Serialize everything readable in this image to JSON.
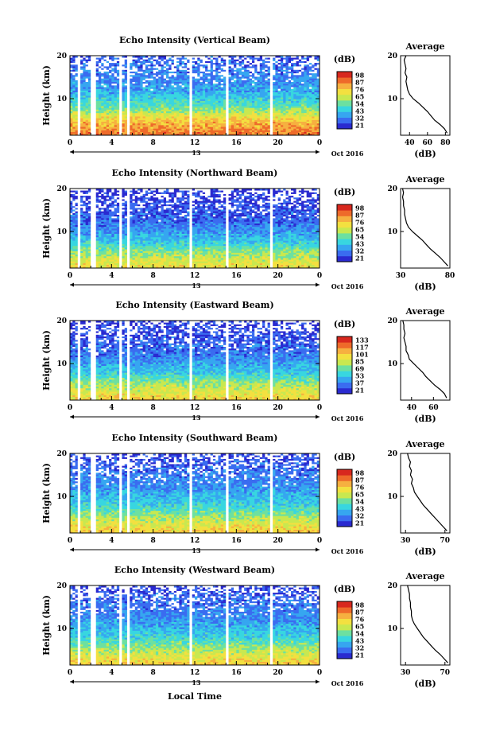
{
  "figure": {
    "xlabel": "Local Time",
    "date_label": "Oct 2016",
    "day_label": "13",
    "colorbar_label": "(dB)",
    "average_title": "Average",
    "average_xlabel": "(dB)",
    "ylabel": "Height (km)",
    "colormap": [
      "#2a2ad0",
      "#3a6cf0",
      "#36a6f0",
      "#38d6e0",
      "#6de0a0",
      "#c8e850",
      "#f3e040",
      "#f6b040",
      "#ee6a2a",
      "#d8281e"
    ],
    "gap_color": "#ffffff"
  },
  "chart_data": [
    {
      "type": "heatmap",
      "title": "Echo Intensity (Vertical Beam)",
      "xlabel": "Local Time",
      "ylabel": "Height (km)",
      "x_ticks": [
        "0",
        "4",
        "8",
        "12",
        "16",
        "20",
        "0"
      ],
      "y_ticks": [
        "10",
        "20"
      ],
      "xlim": [
        0,
        24
      ],
      "ylim": [
        1.5,
        20
      ],
      "colorbar_ticks": [
        "21",
        "32",
        "43",
        "54",
        "65",
        "76",
        "87",
        "98"
      ],
      "data_gaps_hours": [
        [
          0.8,
          1.1
        ],
        [
          2.1,
          2.4
        ],
        [
          4.8,
          5.1
        ],
        [
          5.5,
          5.75
        ],
        [
          11.4,
          11.7
        ],
        [
          11.95,
          12.1
        ],
        [
          15.1,
          15.35
        ],
        [
          18.4,
          18.6
        ],
        [
          19.2,
          19.5
        ]
      ],
      "intensity_profile": [
        {
          "height_km": 2,
          "value_db": 85
        },
        {
          "height_km": 5,
          "value_db": 75
        },
        {
          "height_km": 8,
          "value_db": 55
        },
        {
          "height_km": 12,
          "value_db": 40
        },
        {
          "height_km": 20,
          "value_db": 30
        }
      ],
      "average": {
        "title": "Average",
        "xlabel": "(dB)",
        "x_ticks": [
          "40",
          "60",
          "80"
        ],
        "xlim": [
          30,
          85
        ],
        "y_ticks": [
          "10",
          "20"
        ],
        "height_km": [
          2,
          3,
          4,
          5,
          6,
          7,
          8,
          9,
          10,
          11,
          12,
          13,
          14,
          15,
          16,
          17,
          18,
          19,
          20
        ],
        "value_db": [
          82,
          79,
          74,
          68,
          64,
          60,
          55,
          50,
          44,
          40,
          38,
          37,
          36,
          37,
          35,
          36,
          35,
          34,
          36
        ]
      }
    },
    {
      "type": "heatmap",
      "title": "Echo Intensity (Northward Beam)",
      "xlabel": "Local Time",
      "ylabel": "Height (km)",
      "x_ticks": [
        "0",
        "4",
        "8",
        "12",
        "16",
        "20",
        "0"
      ],
      "y_ticks": [
        "10",
        "20"
      ],
      "xlim": [
        0,
        24
      ],
      "ylim": [
        1.5,
        20
      ],
      "colorbar_ticks": [
        "21",
        "32",
        "43",
        "54",
        "65",
        "76",
        "87",
        "98"
      ],
      "data_gaps_hours": [
        [
          0.8,
          1.1
        ],
        [
          2.1,
          2.4
        ],
        [
          4.8,
          5.1
        ],
        [
          5.5,
          5.75
        ],
        [
          11.4,
          11.7
        ],
        [
          11.95,
          12.1
        ],
        [
          15.1,
          15.35
        ],
        [
          18.4,
          18.6
        ],
        [
          19.2,
          19.5
        ]
      ],
      "intensity_profile": [
        {
          "height_km": 2,
          "value_db": 70
        },
        {
          "height_km": 5,
          "value_db": 60
        },
        {
          "height_km": 8,
          "value_db": 45
        },
        {
          "height_km": 12,
          "value_db": 33
        },
        {
          "height_km": 20,
          "value_db": 25
        }
      ],
      "average": {
        "title": "Average",
        "xlabel": "(dB)",
        "x_ticks": [
          "30",
          "80"
        ],
        "xlim": [
          30,
          80
        ],
        "y_ticks": [
          "10",
          "20"
        ],
        "height_km": [
          2,
          3,
          4,
          5,
          6,
          7,
          8,
          9,
          10,
          11,
          12,
          13,
          14,
          15,
          16,
          17,
          18,
          19,
          20
        ],
        "value_db": [
          78,
          74,
          70,
          65,
          60,
          56,
          52,
          47,
          42,
          38,
          36,
          35,
          34,
          34,
          33,
          33,
          32,
          33,
          32
        ]
      }
    },
    {
      "type": "heatmap",
      "title": "Echo Intensity (Eastward Beam)",
      "xlabel": "Local Time",
      "ylabel": "Height (km)",
      "x_ticks": [
        "0",
        "4",
        "8",
        "12",
        "16",
        "20",
        "0"
      ],
      "y_ticks": [
        "10",
        "20"
      ],
      "xlim": [
        0,
        24
      ],
      "ylim": [
        1.5,
        20
      ],
      "colorbar_ticks": [
        "21",
        "37",
        "53",
        "69",
        "85",
        "101",
        "117",
        "133"
      ],
      "data_gaps_hours": [
        [
          0.8,
          1.1
        ],
        [
          2.1,
          2.4
        ],
        [
          4.8,
          5.1
        ],
        [
          5.5,
          5.75
        ],
        [
          11.4,
          11.7
        ],
        [
          11.95,
          12.1
        ],
        [
          15.1,
          15.35
        ],
        [
          18.4,
          18.6
        ],
        [
          19.2,
          19.5
        ]
      ],
      "intensity_profile": [
        {
          "height_km": 2,
          "value_db": 72
        },
        {
          "height_km": 5,
          "value_db": 62
        },
        {
          "height_km": 8,
          "value_db": 46
        },
        {
          "height_km": 12,
          "value_db": 34
        },
        {
          "height_km": 20,
          "value_db": 26
        }
      ],
      "average": {
        "title": "Average",
        "xlabel": "(dB)",
        "x_ticks": [
          "40",
          "60"
        ],
        "xlim": [
          30,
          75
        ],
        "y_ticks": [
          "10",
          "20"
        ],
        "height_km": [
          2,
          3,
          4,
          5,
          6,
          7,
          8,
          9,
          10,
          11,
          12,
          13,
          14,
          15,
          16,
          17,
          18,
          19,
          20
        ],
        "value_db": [
          72,
          70,
          66,
          61,
          57,
          53,
          50,
          46,
          42,
          38,
          37,
          35,
          35,
          34,
          33,
          34,
          33,
          33,
          32
        ]
      }
    },
    {
      "type": "heatmap",
      "title": "Echo Intensity (Southward Beam)",
      "xlabel": "Local Time",
      "ylabel": "Height (km)",
      "x_ticks": [
        "0",
        "4",
        "8",
        "12",
        "16",
        "20",
        "0"
      ],
      "y_ticks": [
        "10",
        "20"
      ],
      "xlim": [
        0,
        24
      ],
      "ylim": [
        1.5,
        20
      ],
      "colorbar_ticks": [
        "21",
        "32",
        "43",
        "54",
        "65",
        "76",
        "87",
        "98"
      ],
      "data_gaps_hours": [
        [
          0.8,
          1.1
        ],
        [
          2.1,
          2.4
        ],
        [
          4.8,
          5.1
        ],
        [
          5.5,
          5.75
        ],
        [
          11.4,
          11.7
        ],
        [
          11.95,
          12.1
        ],
        [
          15.1,
          15.35
        ],
        [
          18.4,
          18.6
        ],
        [
          19.2,
          19.5
        ]
      ],
      "intensity_profile": [
        {
          "height_km": 2,
          "value_db": 74
        },
        {
          "height_km": 5,
          "value_db": 62
        },
        {
          "height_km": 8,
          "value_db": 48
        },
        {
          "height_km": 12,
          "value_db": 38
        },
        {
          "height_km": 20,
          "value_db": 28
        }
      ],
      "average": {
        "title": "Average",
        "xlabel": "(dB)",
        "x_ticks": [
          "30",
          "70"
        ],
        "xlim": [
          25,
          75
        ],
        "y_ticks": [
          "10",
          "20"
        ],
        "height_km": [
          2,
          3,
          4,
          5,
          6,
          7,
          8,
          9,
          10,
          11,
          12,
          13,
          14,
          15,
          16,
          17,
          18,
          19,
          20
        ],
        "value_db": [
          72,
          68,
          64,
          60,
          56,
          52,
          48,
          45,
          42,
          39,
          38,
          36,
          37,
          35,
          36,
          34,
          35,
          33,
          32
        ]
      }
    },
    {
      "type": "heatmap",
      "title": "Echo Intensity (Westward Beam)",
      "xlabel": "Local Time",
      "ylabel": "Height (km)",
      "x_ticks": [
        "0",
        "4",
        "8",
        "12",
        "16",
        "20",
        "0"
      ],
      "y_ticks": [
        "10",
        "20"
      ],
      "xlim": [
        0,
        24
      ],
      "ylim": [
        1.5,
        20
      ],
      "colorbar_ticks": [
        "21",
        "32",
        "43",
        "54",
        "65",
        "76",
        "87",
        "98"
      ],
      "data_gaps_hours": [
        [
          0.8,
          1.1
        ],
        [
          2.1,
          2.4
        ],
        [
          4.8,
          5.1
        ],
        [
          5.5,
          5.75
        ],
        [
          11.4,
          11.7
        ],
        [
          11.95,
          12.1
        ],
        [
          15.1,
          15.35
        ],
        [
          18.4,
          18.6
        ],
        [
          19.2,
          19.5
        ]
      ],
      "intensity_profile": [
        {
          "height_km": 2,
          "value_db": 74
        },
        {
          "height_km": 5,
          "value_db": 62
        },
        {
          "height_km": 8,
          "value_db": 48
        },
        {
          "height_km": 12,
          "value_db": 38
        },
        {
          "height_km": 20,
          "value_db": 28
        }
      ],
      "average": {
        "title": "Average",
        "xlabel": "(dB)",
        "x_ticks": [
          "30",
          "70"
        ],
        "xlim": [
          25,
          75
        ],
        "y_ticks": [
          "10",
          "20"
        ],
        "height_km": [
          2,
          3,
          4,
          5,
          6,
          7,
          8,
          9,
          10,
          11,
          12,
          13,
          14,
          15,
          16,
          17,
          18,
          19,
          20
        ],
        "value_db": [
          73,
          69,
          65,
          60,
          56,
          52,
          48,
          45,
          42,
          39,
          37,
          36,
          36,
          35,
          35,
          34,
          34,
          33,
          32
        ]
      }
    }
  ]
}
